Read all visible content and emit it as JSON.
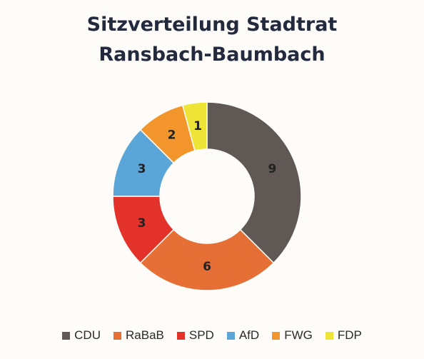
{
  "chart_data": {
    "type": "pie",
    "style": "donut",
    "title": "Sitzverteilung Stadtrat",
    "subtitle": "Ransbach-Baumbach",
    "categories": [
      "CDU",
      "RaBaB",
      "SPD",
      "AfD",
      "FWG",
      "FDP"
    ],
    "values": [
      9,
      6,
      3,
      3,
      2,
      1
    ],
    "colors": [
      "#5f5854",
      "#e66f35",
      "#e3322a",
      "#5aa6d8",
      "#f2962c",
      "#ede435"
    ],
    "data_labels": [
      "9",
      "6",
      "3",
      "3",
      "2",
      "1"
    ],
    "legend_position": "bottom"
  }
}
